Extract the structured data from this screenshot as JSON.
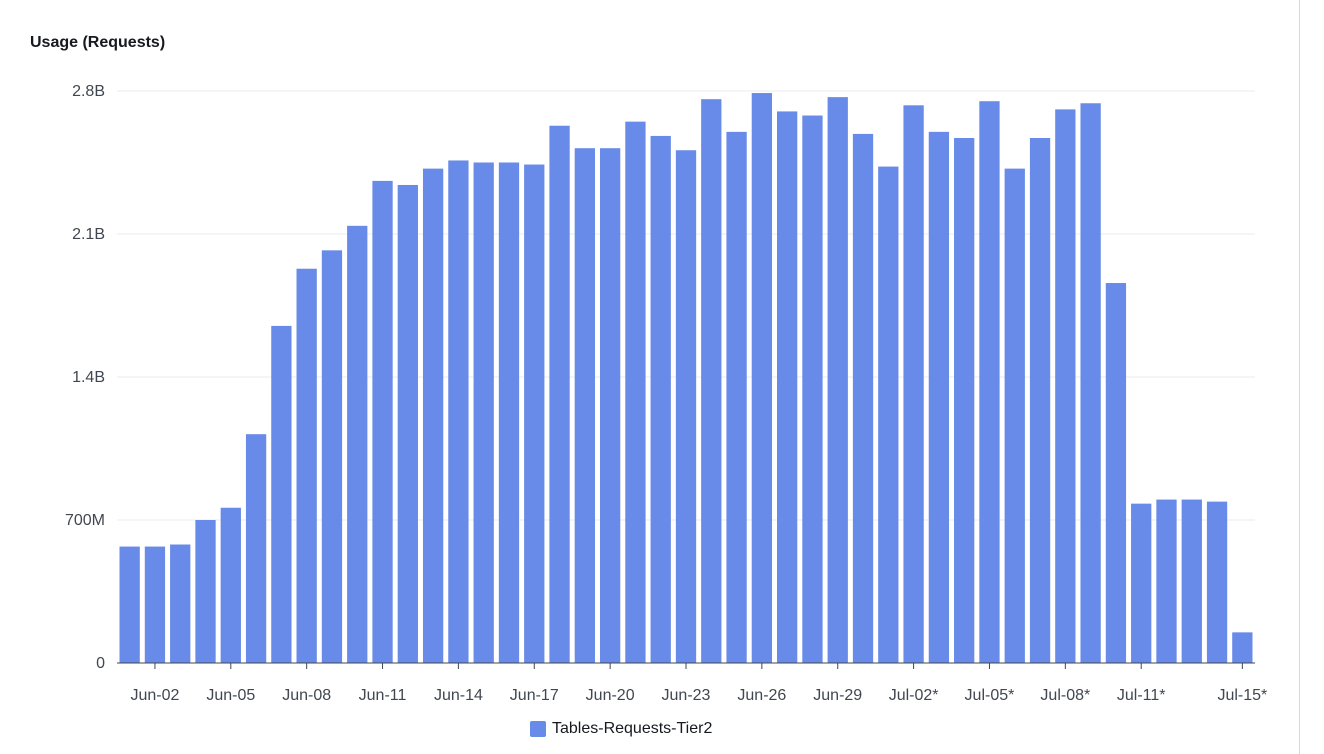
{
  "chart_title": "Usage (Requests)",
  "colors": {
    "bar": "#688ae8",
    "grid": "#e9ebed",
    "axis": "#414750",
    "text": "#16191f",
    "tick_text": "#414750"
  },
  "chart_data": {
    "type": "bar",
    "title": "Usage (Requests)",
    "xlabel": "",
    "ylabel": "",
    "ylim": [
      0,
      2800000000
    ],
    "y_ticks": [
      {
        "value": 0,
        "label": "0"
      },
      {
        "value": 700000000,
        "label": "700M"
      },
      {
        "value": 1400000000,
        "label": "1.4B"
      },
      {
        "value": 2100000000,
        "label": "2.1B"
      },
      {
        "value": 2800000000,
        "label": "2.8B"
      }
    ],
    "x_ticks": [
      {
        "index": 1,
        "label": "Jun-02"
      },
      {
        "index": 4,
        "label": "Jun-05"
      },
      {
        "index": 7,
        "label": "Jun-08"
      },
      {
        "index": 10,
        "label": "Jun-11"
      },
      {
        "index": 13,
        "label": "Jun-14"
      },
      {
        "index": 16,
        "label": "Jun-17"
      },
      {
        "index": 19,
        "label": "Jun-20"
      },
      {
        "index": 22,
        "label": "Jun-23"
      },
      {
        "index": 25,
        "label": "Jun-26"
      },
      {
        "index": 28,
        "label": "Jun-29"
      },
      {
        "index": 31,
        "label": "Jul-02*"
      },
      {
        "index": 34,
        "label": "Jul-05*"
      },
      {
        "index": 37,
        "label": "Jul-08*"
      },
      {
        "index": 40,
        "label": "Jul-11*"
      },
      {
        "index": 44,
        "label": "Jul-15*"
      }
    ],
    "legend": [
      "Tables-Requests-Tier2"
    ],
    "series": [
      {
        "name": "Tables-Requests-Tier2",
        "values": [
          570000000,
          570000000,
          580000000,
          700000000,
          760000000,
          1120000000,
          1650000000,
          1930000000,
          2020000000,
          2140000000,
          2360000000,
          2340000000,
          2420000000,
          2460000000,
          2450000000,
          2450000000,
          2440000000,
          2630000000,
          2520000000,
          2520000000,
          2650000000,
          2580000000,
          2510000000,
          2760000000,
          2600000000,
          2790000000,
          2700000000,
          2680000000,
          2770000000,
          2590000000,
          2430000000,
          2730000000,
          2600000000,
          2570000000,
          2750000000,
          2420000000,
          2570000000,
          2710000000,
          2740000000,
          1860000000,
          780000000,
          800000000,
          800000000,
          790000000,
          150000000
        ]
      }
    ]
  }
}
